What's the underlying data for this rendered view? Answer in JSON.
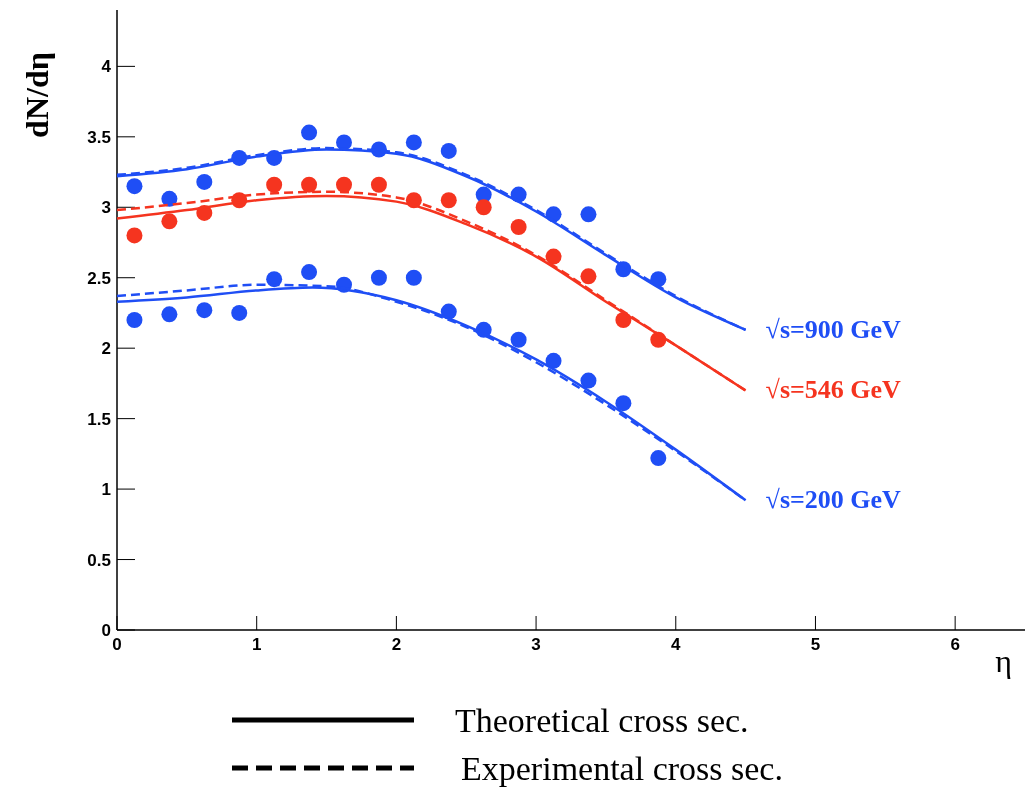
{
  "chart_data": {
    "type": "scatter",
    "xlabel": "η",
    "ylabel": "dN/dη",
    "xlim": [
      0,
      6.5
    ],
    "ylim": [
      0,
      4.4
    ],
    "xticks": [
      0,
      1,
      2,
      3,
      4,
      5,
      6
    ],
    "yticks": [
      0,
      0.5,
      1,
      1.5,
      2,
      2.5,
      3,
      3.5,
      4
    ],
    "marker": "circle",
    "annotations": [
      "Theoretical cross sec.",
      "Experimental cross sec."
    ],
    "series": [
      {
        "name": "√s=900 GeV",
        "color": "#1f4ef5",
        "x": [
          0.125,
          0.375,
          0.625,
          0.875,
          1.125,
          1.375,
          1.625,
          1.875,
          2.125,
          2.375,
          2.625,
          2.875,
          3.125,
          3.375,
          3.625,
          3.875
        ],
        "values": [
          3.15,
          3.06,
          3.18,
          3.35,
          3.35,
          3.53,
          3.46,
          3.41,
          3.46,
          3.4,
          3.09,
          3.09,
          2.95,
          2.95,
          2.56,
          2.49
        ]
      },
      {
        "type": "line",
        "marker": "none",
        "line_style": "solid",
        "color": "#1f4ef5",
        "x": [
          0,
          0.5,
          1,
          1.5,
          2,
          2.5,
          3,
          3.5,
          4,
          4.5
        ],
        "values": [
          3.22,
          3.27,
          3.36,
          3.41,
          3.38,
          3.22,
          2.97,
          2.66,
          2.36,
          2.13
        ]
      },
      {
        "type": "line",
        "marker": "none",
        "line_style": "dashed",
        "color": "#1f4ef5",
        "x": [
          0,
          0.5,
          1,
          1.5,
          2,
          2.5,
          3,
          3.5,
          4,
          4.5
        ],
        "values": [
          3.23,
          3.28,
          3.37,
          3.42,
          3.39,
          3.23,
          2.98,
          2.67,
          2.37,
          2.13
        ]
      },
      {
        "name": "√s=546 GeV",
        "color": "#f5341f",
        "x": [
          0.125,
          0.375,
          0.625,
          0.875,
          1.125,
          1.375,
          1.625,
          1.875,
          2.125,
          2.375,
          2.625,
          2.875,
          3.125,
          3.375,
          3.625,
          3.875
        ],
        "values": [
          2.8,
          2.9,
          2.96,
          3.05,
          3.16,
          3.16,
          3.16,
          3.16,
          3.05,
          3.05,
          3.0,
          2.86,
          2.65,
          2.51,
          2.2,
          2.06
        ]
      },
      {
        "type": "line",
        "marker": "none",
        "line_style": "solid",
        "color": "#f5341f",
        "x": [
          0,
          0.5,
          1,
          1.5,
          2,
          2.5,
          3,
          3.5,
          4,
          4.5
        ],
        "values": [
          2.92,
          2.98,
          3.05,
          3.08,
          3.04,
          2.88,
          2.65,
          2.33,
          2.02,
          1.7
        ]
      },
      {
        "type": "line",
        "marker": "none",
        "line_style": "dashed",
        "color": "#f5341f",
        "x": [
          0,
          0.5,
          1,
          1.5,
          2,
          2.5,
          3,
          3.5,
          4,
          4.5
        ],
        "values": [
          2.98,
          3.03,
          3.09,
          3.11,
          3.07,
          2.9,
          2.66,
          2.34,
          2.02,
          1.7
        ]
      },
      {
        "name": "√s=200 GeV",
        "color": "#1f4ef5",
        "x": [
          0.125,
          0.375,
          0.625,
          0.875,
          1.125,
          1.375,
          1.625,
          1.875,
          2.125,
          2.375,
          2.625,
          2.875,
          3.125,
          3.375,
          3.625,
          3.875
        ],
        "values": [
          2.2,
          2.24,
          2.27,
          2.25,
          2.49,
          2.54,
          2.45,
          2.5,
          2.5,
          2.26,
          2.13,
          2.06,
          1.91,
          1.77,
          1.61,
          1.22
        ]
      },
      {
        "type": "line",
        "marker": "none",
        "line_style": "solid",
        "color": "#1f4ef5",
        "x": [
          0,
          0.5,
          1,
          1.4,
          2,
          2.5,
          3,
          3.5,
          4,
          4.5
        ],
        "values": [
          2.33,
          2.36,
          2.41,
          2.43,
          2.34,
          2.16,
          1.92,
          1.62,
          1.28,
          0.92
        ]
      },
      {
        "type": "line",
        "marker": "none",
        "line_style": "dashed",
        "color": "#1f4ef5",
        "x": [
          0,
          0.5,
          1,
          1.5,
          2,
          2.5,
          3,
          3.5,
          4,
          4.5
        ],
        "values": [
          2.37,
          2.41,
          2.45,
          2.44,
          2.33,
          2.15,
          1.9,
          1.6,
          1.27,
          0.92
        ]
      }
    ]
  }
}
